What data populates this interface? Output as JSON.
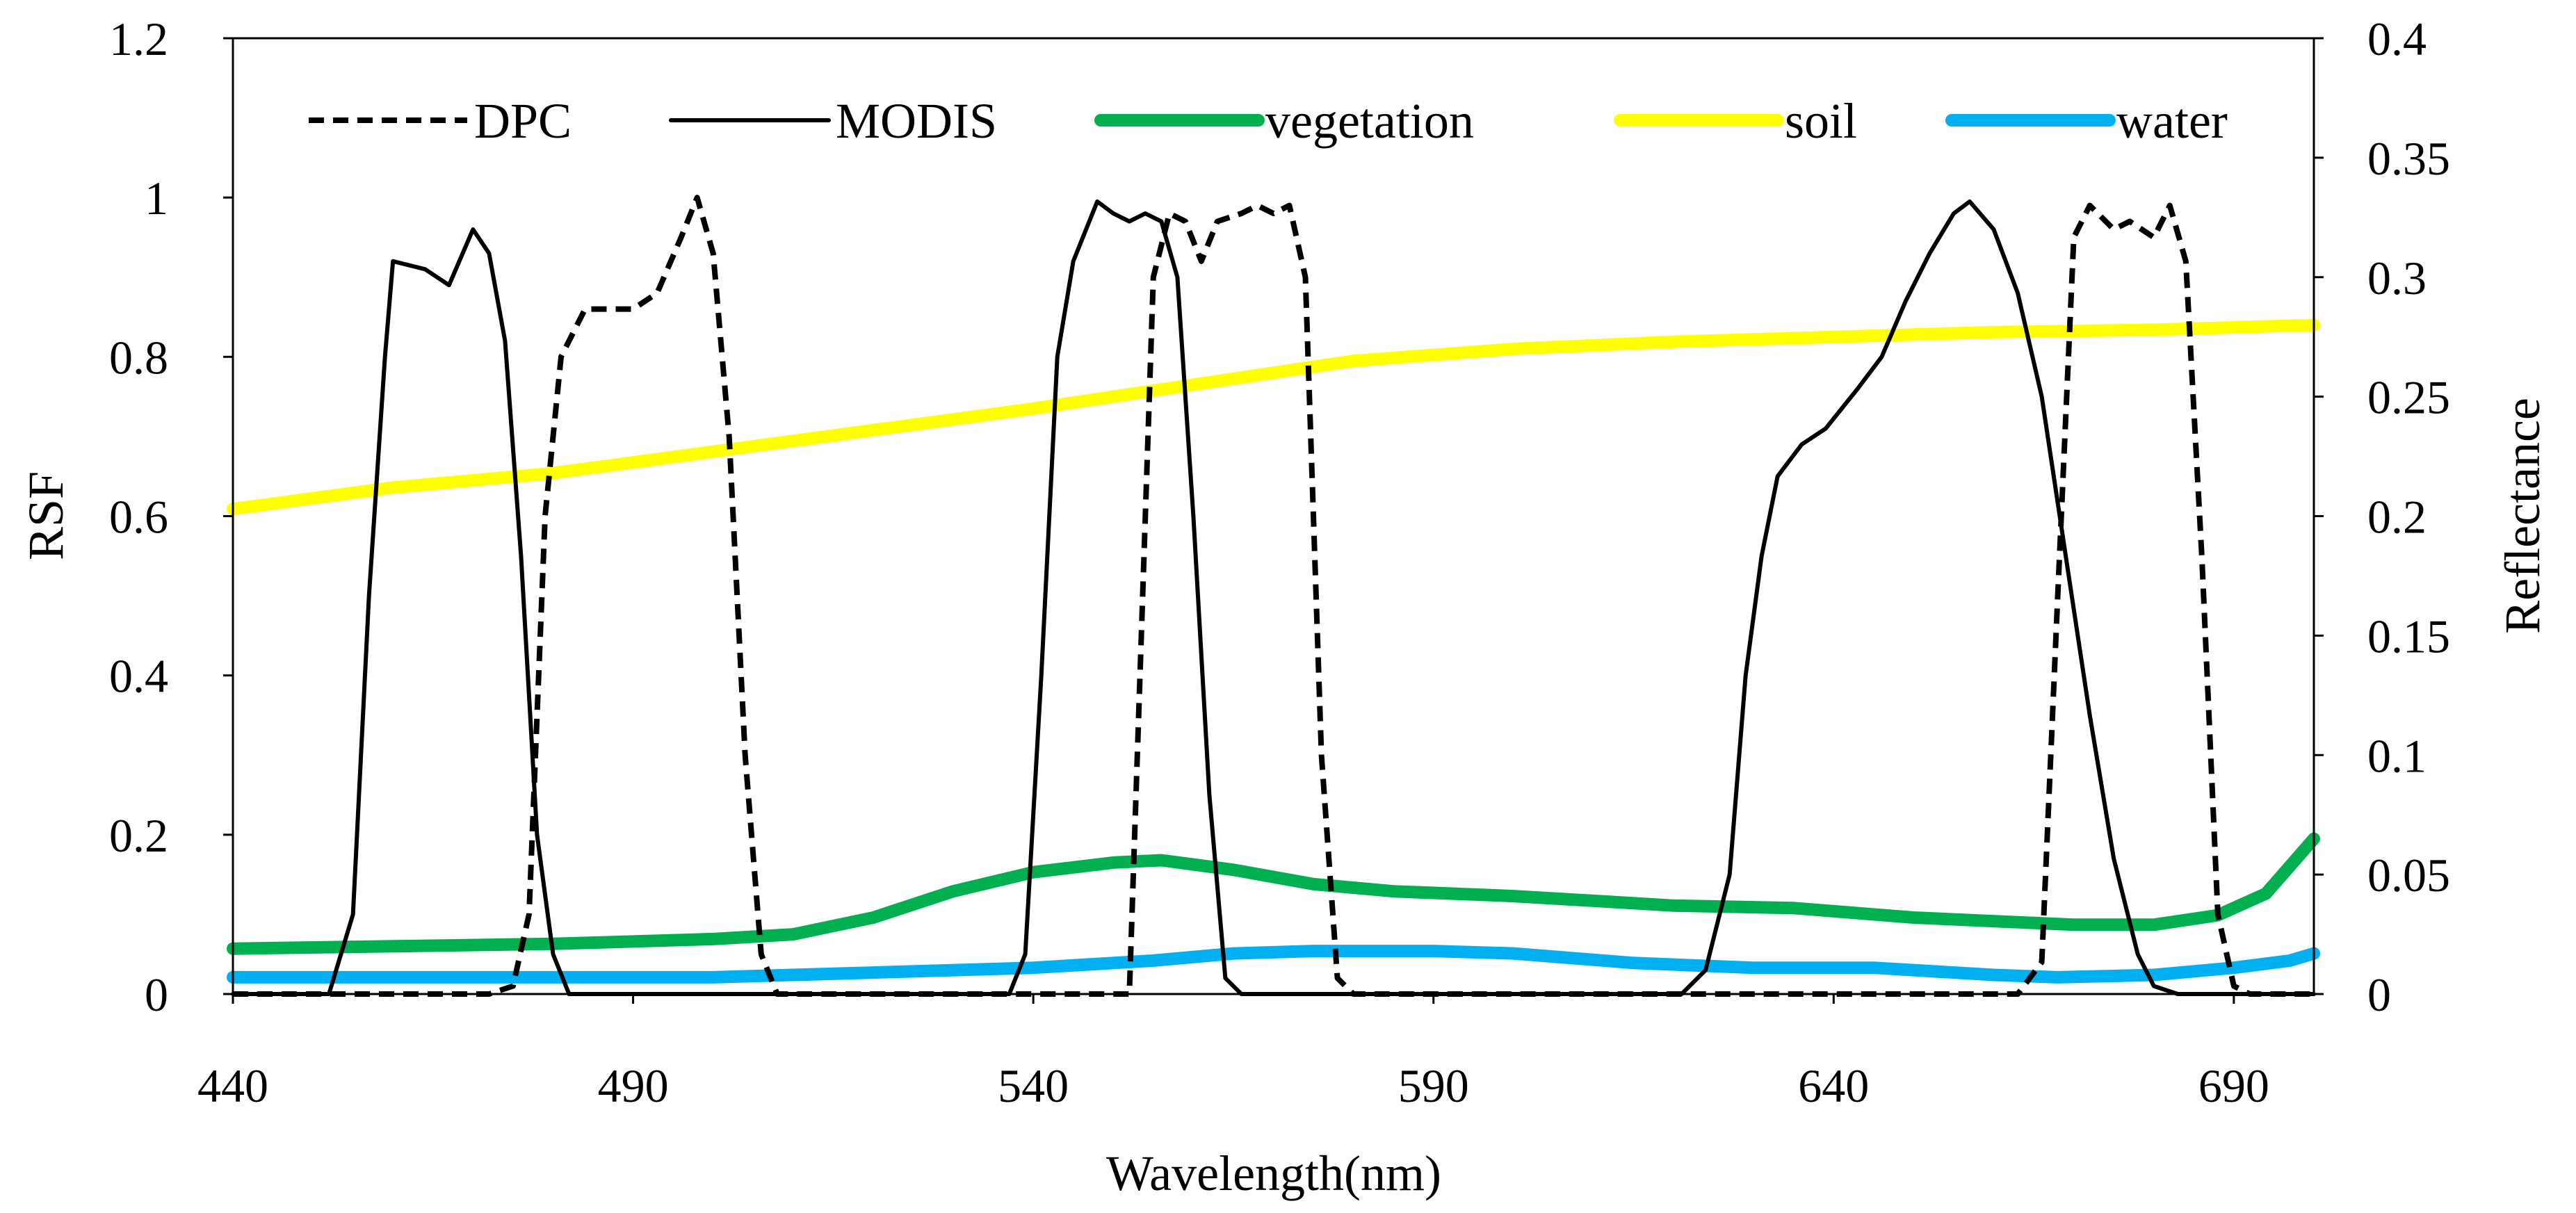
{
  "chart_data": {
    "type": "line",
    "xlabel": "Wavelength(nm)",
    "ylabel": "RSF",
    "y2label": "Reflectance",
    "xlim": [
      440,
      700
    ],
    "ylim": [
      0,
      1.2
    ],
    "y2lim": [
      0,
      0.4
    ],
    "xticks": [
      440,
      490,
      540,
      590,
      640,
      690
    ],
    "xtick_labels": [
      "440",
      "490",
      "540",
      "590",
      "640",
      "690"
    ],
    "yticks": [
      0,
      0.2,
      0.4,
      0.6,
      0.8,
      1,
      1.2
    ],
    "ytick_labels": [
      "0",
      "0.2",
      "0.4",
      "0.6",
      "0.8",
      "1",
      "1.2"
    ],
    "y2ticks": [
      0,
      0.05,
      0.1,
      0.15,
      0.2,
      0.25,
      0.3,
      0.35,
      0.4
    ],
    "y2tick_labels": [
      "0",
      "0.05",
      "0.1",
      "0.15",
      "0.2",
      "0.25",
      "0.3",
      "0.35",
      "0.4"
    ],
    "legend_position": "top",
    "series": [
      {
        "name": "DPC",
        "axis": "left",
        "color": "#000000",
        "style": "dashed",
        "width": 8,
        "points": [
          [
            440,
            0
          ],
          [
            472,
            0
          ],
          [
            475,
            0.01
          ],
          [
            477,
            0.1
          ],
          [
            479,
            0.6
          ],
          [
            481,
            0.8
          ],
          [
            484,
            0.86
          ],
          [
            487,
            0.86
          ],
          [
            490,
            0.86
          ],
          [
            493,
            0.88
          ],
          [
            496,
            0.95
          ],
          [
            498,
            1.0
          ],
          [
            500,
            0.93
          ],
          [
            502,
            0.7
          ],
          [
            504,
            0.3
          ],
          [
            506,
            0.05
          ],
          [
            508,
            0
          ],
          [
            545,
            0
          ],
          [
            552,
            0
          ],
          [
            553,
            0.3
          ],
          [
            555,
            0.9
          ],
          [
            557,
            0.98
          ],
          [
            559,
            0.97
          ],
          [
            561,
            0.92
          ],
          [
            563,
            0.97
          ],
          [
            566,
            0.98
          ],
          [
            568,
            0.99
          ],
          [
            570,
            0.98
          ],
          [
            572,
            0.99
          ],
          [
            574,
            0.9
          ],
          [
            576,
            0.3
          ],
          [
            578,
            0.02
          ],
          [
            580,
            0
          ],
          [
            663,
            0
          ],
          [
            666,
            0.04
          ],
          [
            668,
            0.5
          ],
          [
            670,
            0.95
          ],
          [
            672,
            0.99
          ],
          [
            675,
            0.96
          ],
          [
            677,
            0.97
          ],
          [
            680,
            0.95
          ],
          [
            682,
            0.99
          ],
          [
            684,
            0.92
          ],
          [
            686,
            0.55
          ],
          [
            688,
            0.1
          ],
          [
            690,
            0.01
          ],
          [
            692,
            0
          ],
          [
            700,
            0
          ]
        ]
      },
      {
        "name": "MODIS",
        "axis": "left",
        "color": "#000000",
        "style": "solid",
        "width": 6,
        "points": [
          [
            440,
            0
          ],
          [
            452,
            0
          ],
          [
            455,
            0.1
          ],
          [
            457,
            0.5
          ],
          [
            459,
            0.8
          ],
          [
            460,
            0.92
          ],
          [
            464,
            0.91
          ],
          [
            467,
            0.89
          ],
          [
            470,
            0.96
          ],
          [
            472,
            0.93
          ],
          [
            474,
            0.82
          ],
          [
            476,
            0.55
          ],
          [
            478,
            0.2
          ],
          [
            480,
            0.05
          ],
          [
            482,
            0
          ],
          [
            537,
            0
          ],
          [
            539,
            0.05
          ],
          [
            541,
            0.4
          ],
          [
            543,
            0.8
          ],
          [
            545,
            0.92
          ],
          [
            548,
            0.995
          ],
          [
            550,
            0.98
          ],
          [
            552,
            0.97
          ],
          [
            554,
            0.98
          ],
          [
            556,
            0.97
          ],
          [
            558,
            0.9
          ],
          [
            560,
            0.6
          ],
          [
            562,
            0.25
          ],
          [
            564,
            0.02
          ],
          [
            566,
            0
          ],
          [
            621,
            0
          ],
          [
            624,
            0.03
          ],
          [
            627,
            0.15
          ],
          [
            629,
            0.4
          ],
          [
            631,
            0.55
          ],
          [
            633,
            0.65
          ],
          [
            636,
            0.69
          ],
          [
            639,
            0.71
          ],
          [
            643,
            0.76
          ],
          [
            646,
            0.8
          ],
          [
            649,
            0.87
          ],
          [
            652,
            0.93
          ],
          [
            655,
            0.98
          ],
          [
            657,
            0.995
          ],
          [
            660,
            0.96
          ],
          [
            663,
            0.88
          ],
          [
            666,
            0.75
          ],
          [
            669,
            0.55
          ],
          [
            672,
            0.35
          ],
          [
            675,
            0.17
          ],
          [
            678,
            0.05
          ],
          [
            680,
            0.01
          ],
          [
            683,
            0
          ],
          [
            700,
            0
          ]
        ]
      },
      {
        "name": "vegetation",
        "axis": "right",
        "color": "#00b050",
        "style": "solid",
        "width": 18,
        "points": [
          [
            440,
            0.019
          ],
          [
            460,
            0.02
          ],
          [
            480,
            0.021
          ],
          [
            500,
            0.023
          ],
          [
            510,
            0.025
          ],
          [
            520,
            0.032
          ],
          [
            530,
            0.043
          ],
          [
            540,
            0.051
          ],
          [
            550,
            0.055
          ],
          [
            556,
            0.056
          ],
          [
            565,
            0.052
          ],
          [
            575,
            0.046
          ],
          [
            585,
            0.043
          ],
          [
            600,
            0.041
          ],
          [
            610,
            0.039
          ],
          [
            620,
            0.037
          ],
          [
            635,
            0.036
          ],
          [
            650,
            0.032
          ],
          [
            670,
            0.029
          ],
          [
            680,
            0.029
          ],
          [
            688,
            0.033
          ],
          [
            694,
            0.042
          ],
          [
            700,
            0.065
          ]
        ]
      },
      {
        "name": "soil",
        "axis": "right",
        "color": "#ffff00",
        "style": "solid",
        "width": 18,
        "points": [
          [
            440,
            0.203
          ],
          [
            460,
            0.212
          ],
          [
            480,
            0.218
          ],
          [
            500,
            0.227
          ],
          [
            520,
            0.236
          ],
          [
            540,
            0.245
          ],
          [
            560,
            0.255
          ],
          [
            580,
            0.265
          ],
          [
            600,
            0.27
          ],
          [
            620,
            0.273
          ],
          [
            640,
            0.275
          ],
          [
            660,
            0.277
          ],
          [
            680,
            0.278
          ],
          [
            700,
            0.28
          ]
        ]
      },
      {
        "name": "water",
        "axis": "right",
        "color": "#00b0f0",
        "style": "solid",
        "width": 18,
        "points": [
          [
            440,
            0.007
          ],
          [
            480,
            0.007
          ],
          [
            500,
            0.007
          ],
          [
            520,
            0.009
          ],
          [
            540,
            0.011
          ],
          [
            555,
            0.014
          ],
          [
            565,
            0.017
          ],
          [
            575,
            0.018
          ],
          [
            590,
            0.018
          ],
          [
            600,
            0.017
          ],
          [
            615,
            0.013
          ],
          [
            630,
            0.011
          ],
          [
            645,
            0.011
          ],
          [
            660,
            0.008
          ],
          [
            668,
            0.007
          ],
          [
            680,
            0.008
          ],
          [
            690,
            0.011
          ],
          [
            697,
            0.014
          ],
          [
            700,
            0.017
          ]
        ]
      }
    ]
  }
}
